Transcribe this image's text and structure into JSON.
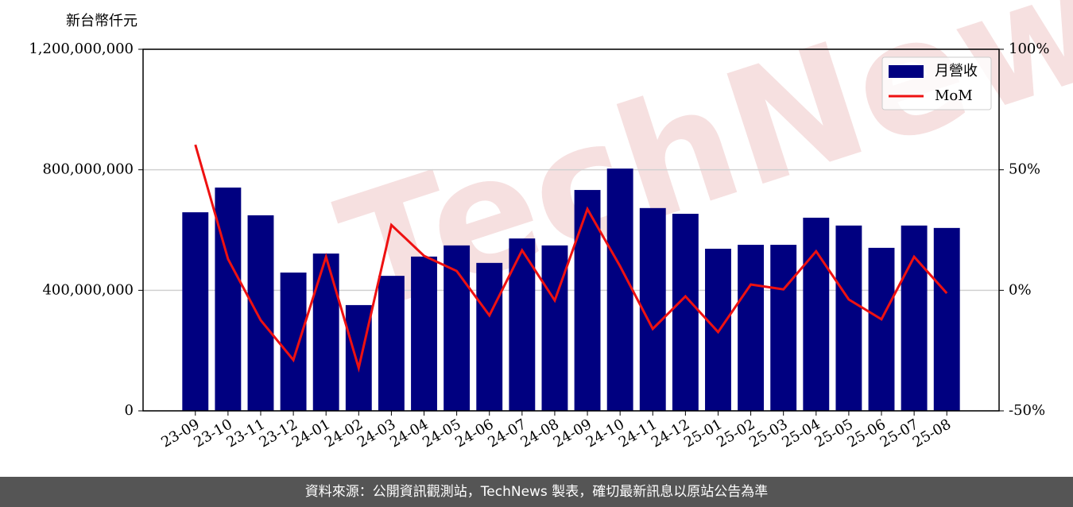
{
  "chart_data": {
    "type": "bar-line",
    "y_axis_title": "新台幣仟元",
    "watermark": "TechNews",
    "source": "資料來源：公開資訊觀測站，TechNews 製表，確切最新訊息以原站公告為準",
    "categories": [
      "23-09",
      "23-10",
      "23-11",
      "23-12",
      "24-01",
      "24-02",
      "24-03",
      "24-04",
      "24-05",
      "24-06",
      "24-07",
      "24-08",
      "24-09",
      "24-10",
      "24-11",
      "24-12",
      "25-01",
      "25-02",
      "25-03",
      "25-04",
      "25-05",
      "25-06",
      "25-07",
      "25-08"
    ],
    "series": [
      {
        "name": "月營收",
        "type": "bar",
        "color": "#000080",
        "values": [
          659000000,
          741000000,
          649000000,
          459000000,
          522000000,
          351000000,
          448000000,
          512000000,
          549000000,
          491000000,
          572000000,
          549000000,
          733000000,
          804000000,
          673000000,
          654000000,
          538000000,
          551000000,
          551000000,
          641000000,
          615000000,
          541000000,
          615000000,
          607000000
        ]
      },
      {
        "name": "MoM",
        "type": "line",
        "axis": "y2",
        "color": "#ee1111",
        "values": [
          60.4,
          13,
          -12.4,
          -28.9,
          13.9,
          -32.2,
          27.1,
          14.3,
          8,
          -10.4,
          16.6,
          -4.2,
          33.7,
          10,
          -16,
          -2.5,
          -17.3,
          2.4,
          0.4,
          16.2,
          -3.8,
          -12,
          13.9,
          -1.2
        ]
      }
    ],
    "ylim": [
      0,
      1200000000
    ],
    "yticks": [
      0,
      {
        "value": 400000000,
        "label": "400,000,000"
      },
      {
        "value": 800000000,
        "label": "800,000,000"
      },
      {
        "value": 1200000000,
        "label": "1,200,000,000"
      }
    ],
    "y2lim": [
      -50,
      100
    ],
    "y2ticks": [
      {
        "value": -50,
        "label": "-50%"
      },
      {
        "value": 0,
        "label": "0%"
      },
      {
        "value": 50,
        "label": "50%"
      },
      {
        "value": 100,
        "label": "100%"
      }
    ],
    "grid": true,
    "legend": "upper right"
  }
}
